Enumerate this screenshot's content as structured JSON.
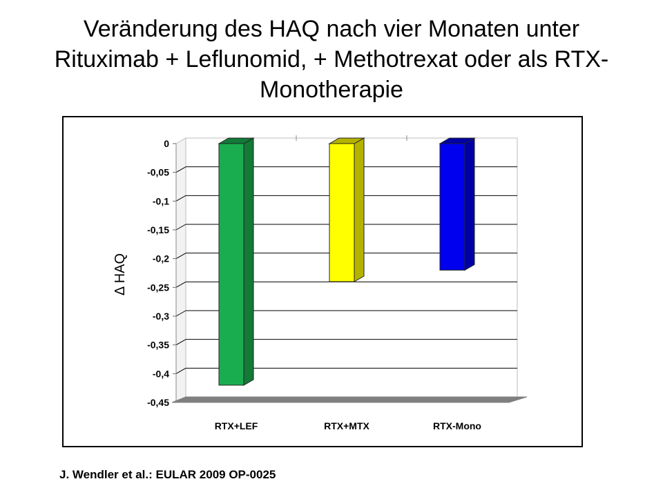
{
  "title_lines": [
    "Veränderung des HAQ nach vier Monaten unter",
    "Rituximab + Leflunomid, + Methotrexat oder als RTX-",
    "Monotherapie"
  ],
  "citation": "J. Wendler et al.: EULAR 2009 OP-0025",
  "chart_data": {
    "type": "bar",
    "categories": [
      "RTX+LEF",
      "RTX+MTX",
      "RTX-Mono"
    ],
    "values": [
      -0.42,
      -0.24,
      -0.22
    ],
    "colors": [
      "#1aad4f",
      "#ffff00",
      "#0000ee"
    ],
    "side_colors": [
      "#137a38",
      "#b5b300",
      "#0000a5"
    ],
    "ylabel": "Δ HAQ",
    "yticks": [
      "0",
      "-0,05",
      "-0,1",
      "-0,15",
      "-0,2",
      "-0,25",
      "-0,3",
      "-0,35",
      "-0,4",
      "-0,45"
    ],
    "ylim": [
      -0.45,
      0
    ],
    "grid": true,
    "style": "3d-column"
  }
}
